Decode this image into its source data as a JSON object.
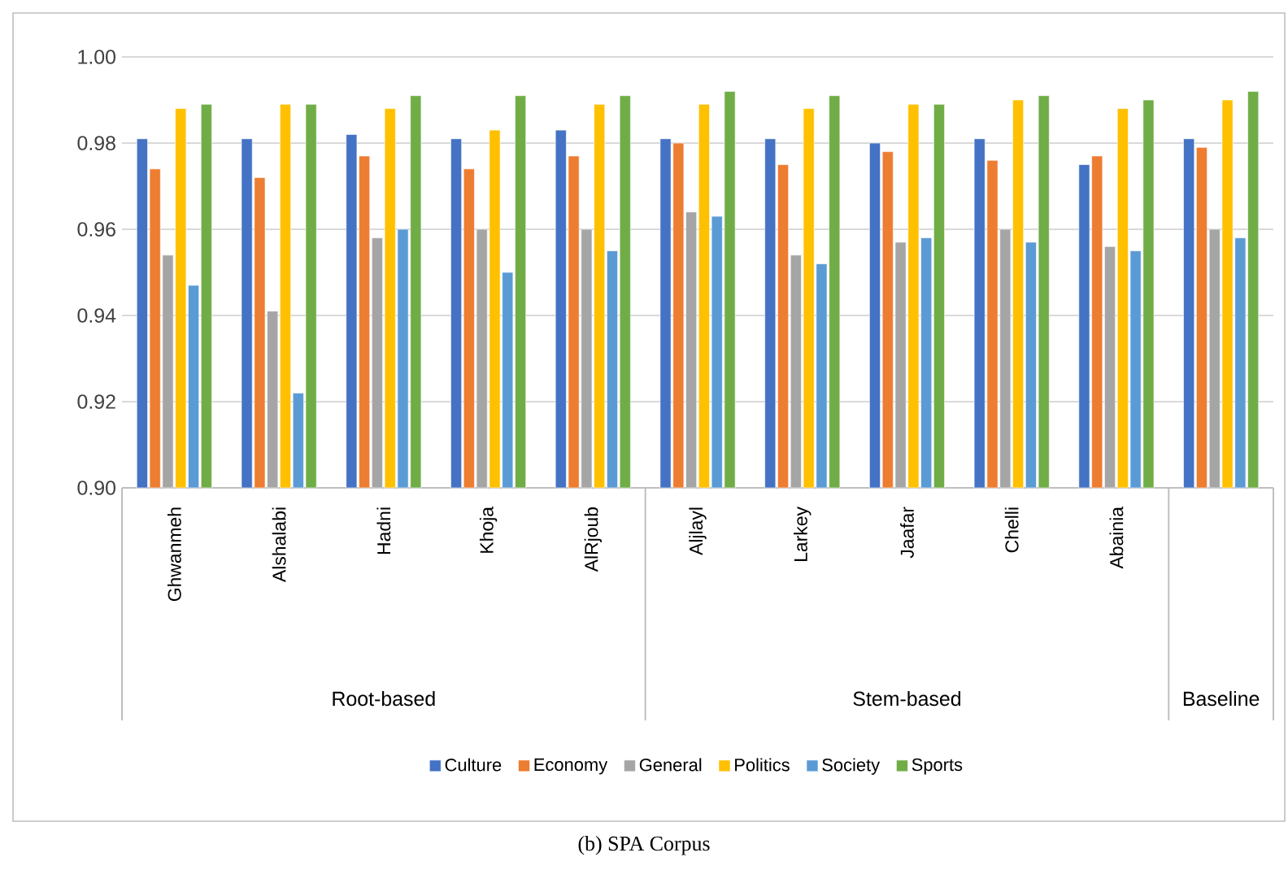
{
  "chart_data": {
    "type": "bar",
    "categories": [
      "Ghwanmeh",
      "Alshalabi",
      "Hadni",
      "Khoja",
      "AlRjoub",
      "Aljlayl",
      "Larkey",
      "Jaafar",
      "Chelli",
      "Abainia",
      null
    ],
    "series": [
      {
        "name": "Culture",
        "color": "#4472c4",
        "values": [
          0.981,
          0.981,
          0.982,
          0.981,
          0.983,
          0.981,
          0.981,
          0.98,
          0.981,
          0.975,
          0.981
        ]
      },
      {
        "name": "Economy",
        "color": "#ed7d31",
        "values": [
          0.974,
          0.972,
          0.977,
          0.974,
          0.977,
          0.98,
          0.975,
          0.978,
          0.976,
          0.977,
          0.979
        ]
      },
      {
        "name": "General",
        "color": "#a5a5a5",
        "values": [
          0.954,
          0.941,
          0.958,
          0.96,
          0.96,
          0.964,
          0.954,
          0.957,
          0.96,
          0.956,
          0.96
        ]
      },
      {
        "name": "Politics",
        "color": "#ffc000",
        "values": [
          0.988,
          0.989,
          0.988,
          0.983,
          0.989,
          0.989,
          0.988,
          0.989,
          0.99,
          0.988,
          0.99
        ]
      },
      {
        "name": "Society",
        "color": "#5b9bd5",
        "values": [
          0.947,
          0.922,
          0.96,
          0.95,
          0.955,
          0.963,
          0.952,
          0.958,
          0.957,
          0.955,
          0.958
        ]
      },
      {
        "name": "Sports",
        "color": "#70ad47",
        "values": [
          0.989,
          0.989,
          0.991,
          0.991,
          0.991,
          0.992,
          0.991,
          0.989,
          0.991,
          0.99,
          0.992
        ]
      }
    ],
    "ylim": [
      0.9,
      1.0
    ],
    "yticks": [
      {
        "value": 0.9,
        "label": "0.90"
      },
      {
        "value": 0.92,
        "label": "0.92"
      },
      {
        "value": 0.94,
        "label": "0.94"
      },
      {
        "value": 0.96,
        "label": "0.96"
      },
      {
        "value": 0.98,
        "label": "0.98"
      },
      {
        "value": 1.0,
        "label": "1.00"
      }
    ],
    "grid": "y",
    "legend": "bottom",
    "annotations": [
      "Root-based",
      "Stem-based",
      "Baseline",
      "(b) SPA Corpus"
    ]
  }
}
